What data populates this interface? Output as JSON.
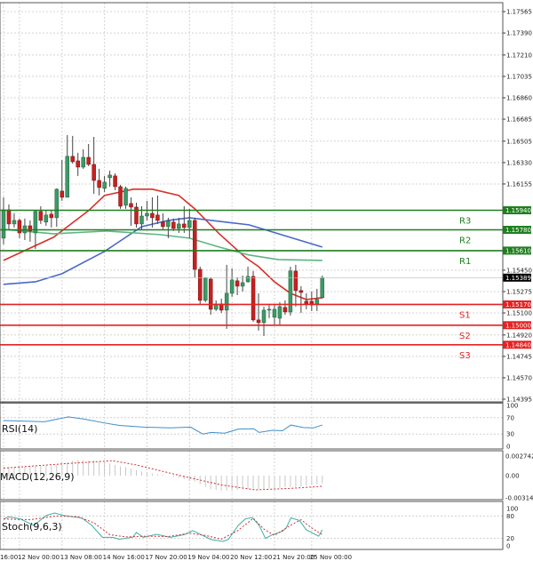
{
  "chart_data": [
    {
      "type": "candlestick",
      "pane": "price",
      "ylim": [
        1.14373,
        1.17638
      ],
      "y_ticks": [
        "1.17565",
        "1.17390",
        "1.17210",
        "1.17035",
        "1.16860",
        "1.16685",
        "1.16505",
        "1.16330",
        "1.16155",
        "1.15450",
        "1.15275",
        "1.15100",
        "1.14920",
        "1.14745",
        "1.14570",
        "1.14395"
      ],
      "time_labels": [
        {
          "label": "16:00",
          "bar": 0
        },
        {
          "label": "12 Nov 00:00",
          "bar": 3
        },
        {
          "label": "13 Nov 08:00",
          "bar": 11
        },
        {
          "label": "14 Nov 16:00",
          "bar": 19
        },
        {
          "label": "17 Nov 20:00",
          "bar": 27
        },
        {
          "label": "19 Nov 04:00",
          "bar": 35
        },
        {
          "label": "20 Nov 12:00",
          "bar": 43
        },
        {
          "label": "21 Nov 20:00",
          "bar": 51
        },
        {
          "label": "25 Nov 00:00",
          "bar": 58
        }
      ],
      "ohlc": [
        [
          1.15712,
          1.16046,
          1.15661,
          1.15944
        ],
        [
          1.15944,
          1.15988,
          1.15784,
          1.15828
        ],
        [
          1.15828,
          1.15915,
          1.15799,
          1.15857
        ],
        [
          1.15857,
          1.15872,
          1.15712,
          1.15755
        ],
        [
          1.15755,
          1.15872,
          1.15697,
          1.15813
        ],
        [
          1.15813,
          1.15857,
          1.15683,
          1.1577
        ],
        [
          1.15755,
          1.15944,
          1.15624,
          1.1593
        ],
        [
          1.1593,
          1.15973,
          1.15828,
          1.15857
        ],
        [
          1.15843,
          1.15944,
          1.15813,
          1.15901
        ],
        [
          1.15908,
          1.15937,
          1.15799,
          1.15879
        ],
        [
          1.15879,
          1.16119,
          1.15806,
          1.16112
        ],
        [
          1.16097,
          1.16351,
          1.16017,
          1.16046
        ],
        [
          1.16046,
          1.16555,
          1.16046,
          1.16381
        ],
        [
          1.16381,
          1.16548,
          1.16322,
          1.16337
        ],
        [
          1.16344,
          1.1641,
          1.16221,
          1.16293
        ],
        [
          1.16293,
          1.16439,
          1.16279,
          1.16373
        ],
        [
          1.16373,
          1.16482,
          1.16301,
          1.16315
        ],
        [
          1.16315,
          1.1654,
          1.16075,
          1.16184
        ],
        [
          1.16184,
          1.16279,
          1.16061,
          1.16126
        ],
        [
          1.16119,
          1.16221,
          1.1609,
          1.1617
        ],
        [
          1.16206,
          1.16264,
          1.16133,
          1.16228
        ],
        [
          1.16221,
          1.16242,
          1.16104,
          1.16133
        ],
        [
          1.16133,
          1.16148,
          1.15952,
          1.15973
        ],
        [
          1.15981,
          1.16133,
          1.15952,
          1.16119
        ],
        [
          1.15995,
          1.16046,
          1.15813,
          1.15966
        ],
        [
          1.15966,
          1.16002,
          1.15799,
          1.15828
        ],
        [
          1.15828,
          1.15973,
          1.15784,
          1.15893
        ],
        [
          1.15893,
          1.16017,
          1.15857,
          1.15915
        ],
        [
          1.15915,
          1.16046,
          1.15799,
          1.15879
        ],
        [
          1.15901,
          1.16061,
          1.15828,
          1.15857
        ],
        [
          1.15843,
          1.15915,
          1.15784,
          1.15806
        ],
        [
          1.15806,
          1.15879,
          1.15712,
          1.1585
        ],
        [
          1.15843,
          1.15872,
          1.1577,
          1.15792
        ],
        [
          1.15792,
          1.15879,
          1.15755,
          1.15828
        ],
        [
          1.15828,
          1.15973,
          1.15755,
          1.15799
        ],
        [
          1.15799,
          1.15952,
          1.15712,
          1.15857
        ],
        [
          1.15857,
          1.15879,
          1.15392,
          1.15457
        ],
        [
          1.15457,
          1.15479,
          1.15174,
          1.15203
        ],
        [
          1.15203,
          1.15392,
          1.15188,
          1.15385
        ],
        [
          1.15377,
          1.15392,
          1.15086,
          1.1513
        ],
        [
          1.1513,
          1.15203,
          1.15116,
          1.15174
        ],
        [
          1.15174,
          1.15217,
          1.15101,
          1.15123
        ],
        [
          1.15123,
          1.15494,
          1.1497,
          1.15261
        ],
        [
          1.15261,
          1.15465,
          1.15232,
          1.1537
        ],
        [
          1.15363,
          1.15392,
          1.15246,
          1.15319
        ],
        [
          1.15319,
          1.15406,
          1.15275,
          1.15348
        ],
        [
          1.15355,
          1.15479,
          1.15348,
          1.15399
        ],
        [
          1.15399,
          1.15443,
          1.15028,
          1.15043
        ],
        [
          1.15043,
          1.15261,
          1.14956,
          1.15021
        ],
        [
          1.15021,
          1.15152,
          1.14912,
          1.15123
        ],
        [
          1.15123,
          1.15166,
          1.15057,
          1.1513
        ],
        [
          1.15065,
          1.15174,
          1.15006,
          1.1513
        ],
        [
          1.15057,
          1.15188,
          1.15006,
          1.15152
        ],
        [
          1.15145,
          1.15203,
          1.15086,
          1.15108
        ],
        [
          1.15108,
          1.15479,
          1.15079,
          1.15443
        ],
        [
          1.15443,
          1.15494,
          1.15152,
          1.15283
        ],
        [
          1.15283,
          1.15319,
          1.15101,
          1.15268
        ],
        [
          1.15196,
          1.15261,
          1.1513,
          1.15174
        ],
        [
          1.15196,
          1.15275,
          1.15116,
          1.15166
        ],
        [
          1.15174,
          1.15297,
          1.15116,
          1.1521
        ],
        [
          1.15225,
          1.15406,
          1.15217,
          1.15389
        ]
      ],
      "moving_averages": [
        {
          "color": "#d8312b",
          "points": [
            [
              0,
              1.1553
            ],
            [
              9.4,
              1.15719
            ],
            [
              16,
              1.15937
            ],
            [
              19,
              1.16061
            ],
            [
              24.4,
              1.16112
            ],
            [
              28,
              1.16112
            ],
            [
              33,
              1.16061
            ],
            [
              36,
              1.15952
            ],
            [
              40.6,
              1.15748
            ],
            [
              45.6,
              1.15552
            ],
            [
              48,
              1.15479
            ],
            [
              51,
              1.15355
            ],
            [
              54,
              1.15261
            ],
            [
              57,
              1.1521
            ],
            [
              60,
              1.15225
            ]
          ]
        },
        {
          "color": "#4a68c8",
          "points": [
            [
              0,
              1.15334
            ],
            [
              6,
              1.15355
            ],
            [
              11,
              1.15421
            ],
            [
              19,
              1.15603
            ],
            [
              26,
              1.15806
            ],
            [
              31,
              1.15857
            ],
            [
              35,
              1.15879
            ],
            [
              37.8,
              1.15864
            ],
            [
              46.2,
              1.15821
            ],
            [
              51.7,
              1.15748
            ],
            [
              60,
              1.15639
            ]
          ]
        },
        {
          "color": "#5db585",
          "points": [
            [
              0,
              1.15784
            ],
            [
              9.4,
              1.15748
            ],
            [
              19.4,
              1.1577
            ],
            [
              29.4,
              1.15741
            ],
            [
              35,
              1.15712
            ],
            [
              40.6,
              1.15639
            ],
            [
              46.2,
              1.15574
            ],
            [
              51.7,
              1.15537
            ],
            [
              60,
              1.1553
            ]
          ]
        }
      ],
      "levels": [
        {
          "name": "R3",
          "price": "1.15940",
          "color": "#1f7f1f"
        },
        {
          "name": "R2",
          "price": "1.15780",
          "color": "#1f7f1f"
        },
        {
          "name": "R1",
          "price": "1.15610",
          "color": "#1f7f1f"
        },
        {
          "name": "S1",
          "price": "1.15170",
          "color": "#e52222"
        },
        {
          "name": "S2",
          "price": "1.15000",
          "color": "#e52222"
        },
        {
          "name": "S3",
          "price": "1.14840",
          "color": "#e52222"
        }
      ],
      "current_price": "1.15389",
      "colors": {
        "bull": "#3c9a66",
        "bear": "#c82020",
        "wick": "#444444",
        "current": "#000000"
      }
    },
    {
      "type": "line",
      "pane": "rsi",
      "title": "RSI(14)",
      "ylim": [
        -6.5,
        106.5
      ],
      "y_ticks": [
        "100",
        "70",
        "30",
        "0"
      ],
      "levels": [
        70,
        30
      ],
      "color": "#3f8fc8",
      "points": [
        [
          0,
          63
        ],
        [
          7.7,
          60
        ],
        [
          12.2,
          72
        ],
        [
          15.4,
          66
        ],
        [
          18.6,
          58
        ],
        [
          21.8,
          51
        ],
        [
          26.3,
          47
        ],
        [
          31.4,
          45
        ],
        [
          35.2,
          47
        ],
        [
          37.5,
          30
        ],
        [
          39.1,
          34
        ],
        [
          41.6,
          32
        ],
        [
          44.2,
          42
        ],
        [
          47.1,
          43
        ],
        [
          48.1,
          34
        ],
        [
          50.6,
          39
        ],
        [
          52.5,
          38
        ],
        [
          54.1,
          52
        ],
        [
          56.4,
          46
        ],
        [
          58.3,
          45
        ],
        [
          60,
          52
        ]
      ]
    },
    {
      "type": "bar",
      "pane": "macd",
      "title": "MACD(12,26,9)",
      "ylim": [
        -0.00337,
        0.00349
      ],
      "y_ticks": [
        {
          "label": "0.002742",
          "value": 0.002742
        },
        {
          "label": "0.00",
          "value": 0
        },
        {
          "label": "-0.003142",
          "value": -0.003142
        }
      ],
      "histogram": [
        0.0012,
        0.0012,
        0.0012,
        0.0013,
        0.0013,
        0.0013,
        0.0013,
        0.0014,
        0.0014,
        0.0014,
        0.0015,
        0.0017,
        0.0019,
        0.0021,
        0.0022,
        0.0022,
        0.0021,
        0.0021,
        0.002,
        0.0019,
        0.0017,
        0.0015,
        0.0013,
        0.0012,
        0.001,
        0.0008,
        0.0006,
        0.0005,
        0.0003,
        0.0002,
        0.0001,
        0.0,
        -0.0002,
        -0.0003,
        -0.0005,
        -0.0007,
        -0.0008,
        -0.0012,
        -0.0016,
        -0.0019,
        -0.002,
        -0.0021,
        -0.0021,
        -0.002,
        -0.002,
        -0.0019,
        -0.0019,
        -0.0018,
        -0.0019,
        -0.0019,
        -0.0018,
        -0.0018,
        -0.0017,
        -0.0016,
        -0.0016,
        -0.0016,
        -0.0015,
        -0.0014,
        -0.0013,
        -0.0012,
        -0.0011
      ],
      "signal": [
        [
          0,
          0.00105
        ],
        [
          12,
          0.0017
        ],
        [
          20.5,
          0.0021
        ],
        [
          25,
          0.0015
        ],
        [
          33.3,
          0.0
        ],
        [
          41,
          -0.0013
        ],
        [
          47.4,
          -0.002
        ],
        [
          53.8,
          -0.0018
        ],
        [
          60,
          -0.0015
        ]
      ],
      "colors": {
        "histogram": "#c8c8c8",
        "signal": "#d03030"
      }
    },
    {
      "type": "line",
      "pane": "stoch",
      "title": "Stoch(9,6,3)",
      "ylim": [
        -9.5,
        119
      ],
      "y_ticks": [
        {
          "label": "100",
          "value": 100
        },
        {
          "label": "80",
          "value": 80
        },
        {
          "label": "20",
          "value": 20
        },
        {
          "label": "0",
          "value": 0
        }
      ],
      "levels": [
        80,
        20
      ],
      "main": {
        "color": "#3cb0a8",
        "points": [
          [
            0,
            72
          ],
          [
            1,
            78
          ],
          [
            3.2,
            72
          ],
          [
            5.7,
            55
          ],
          [
            8,
            81
          ],
          [
            9.6,
            88
          ],
          [
            11.5,
            81
          ],
          [
            14.7,
            75
          ],
          [
            16.6,
            55
          ],
          [
            18.6,
            23
          ],
          [
            20.5,
            23
          ],
          [
            21.8,
            18
          ],
          [
            24.3,
            23
          ],
          [
            25,
            36
          ],
          [
            26.3,
            23
          ],
          [
            28.8,
            31
          ],
          [
            31.4,
            23
          ],
          [
            34,
            30
          ],
          [
            35.6,
            41
          ],
          [
            37.2,
            30
          ],
          [
            39.1,
            17
          ],
          [
            41.3,
            12
          ],
          [
            42.3,
            17
          ],
          [
            44.2,
            55
          ],
          [
            45.5,
            72
          ],
          [
            46.8,
            76
          ],
          [
            48.1,
            55
          ],
          [
            49.3,
            20
          ],
          [
            50.6,
            30
          ],
          [
            52.5,
            39
          ],
          [
            53.2,
            48
          ],
          [
            54.1,
            75
          ],
          [
            55.7,
            68
          ],
          [
            57,
            43
          ],
          [
            59.3,
            26
          ],
          [
            60,
            43
          ]
        ]
      },
      "signal": {
        "color": "#d03030",
        "points": [
          [
            0,
            72
          ],
          [
            5,
            70
          ],
          [
            10,
            80
          ],
          [
            14,
            78
          ],
          [
            17,
            62
          ],
          [
            20,
            30
          ],
          [
            23,
            24
          ],
          [
            27,
            26
          ],
          [
            31,
            25
          ],
          [
            35,
            34
          ],
          [
            38,
            28
          ],
          [
            41,
            18
          ],
          [
            44,
            40
          ],
          [
            46,
            62
          ],
          [
            47,
            74
          ],
          [
            49,
            45
          ],
          [
            51,
            28
          ],
          [
            54,
            55
          ],
          [
            56,
            70
          ],
          [
            58,
            48
          ],
          [
            60,
            30
          ]
        ]
      }
    }
  ]
}
